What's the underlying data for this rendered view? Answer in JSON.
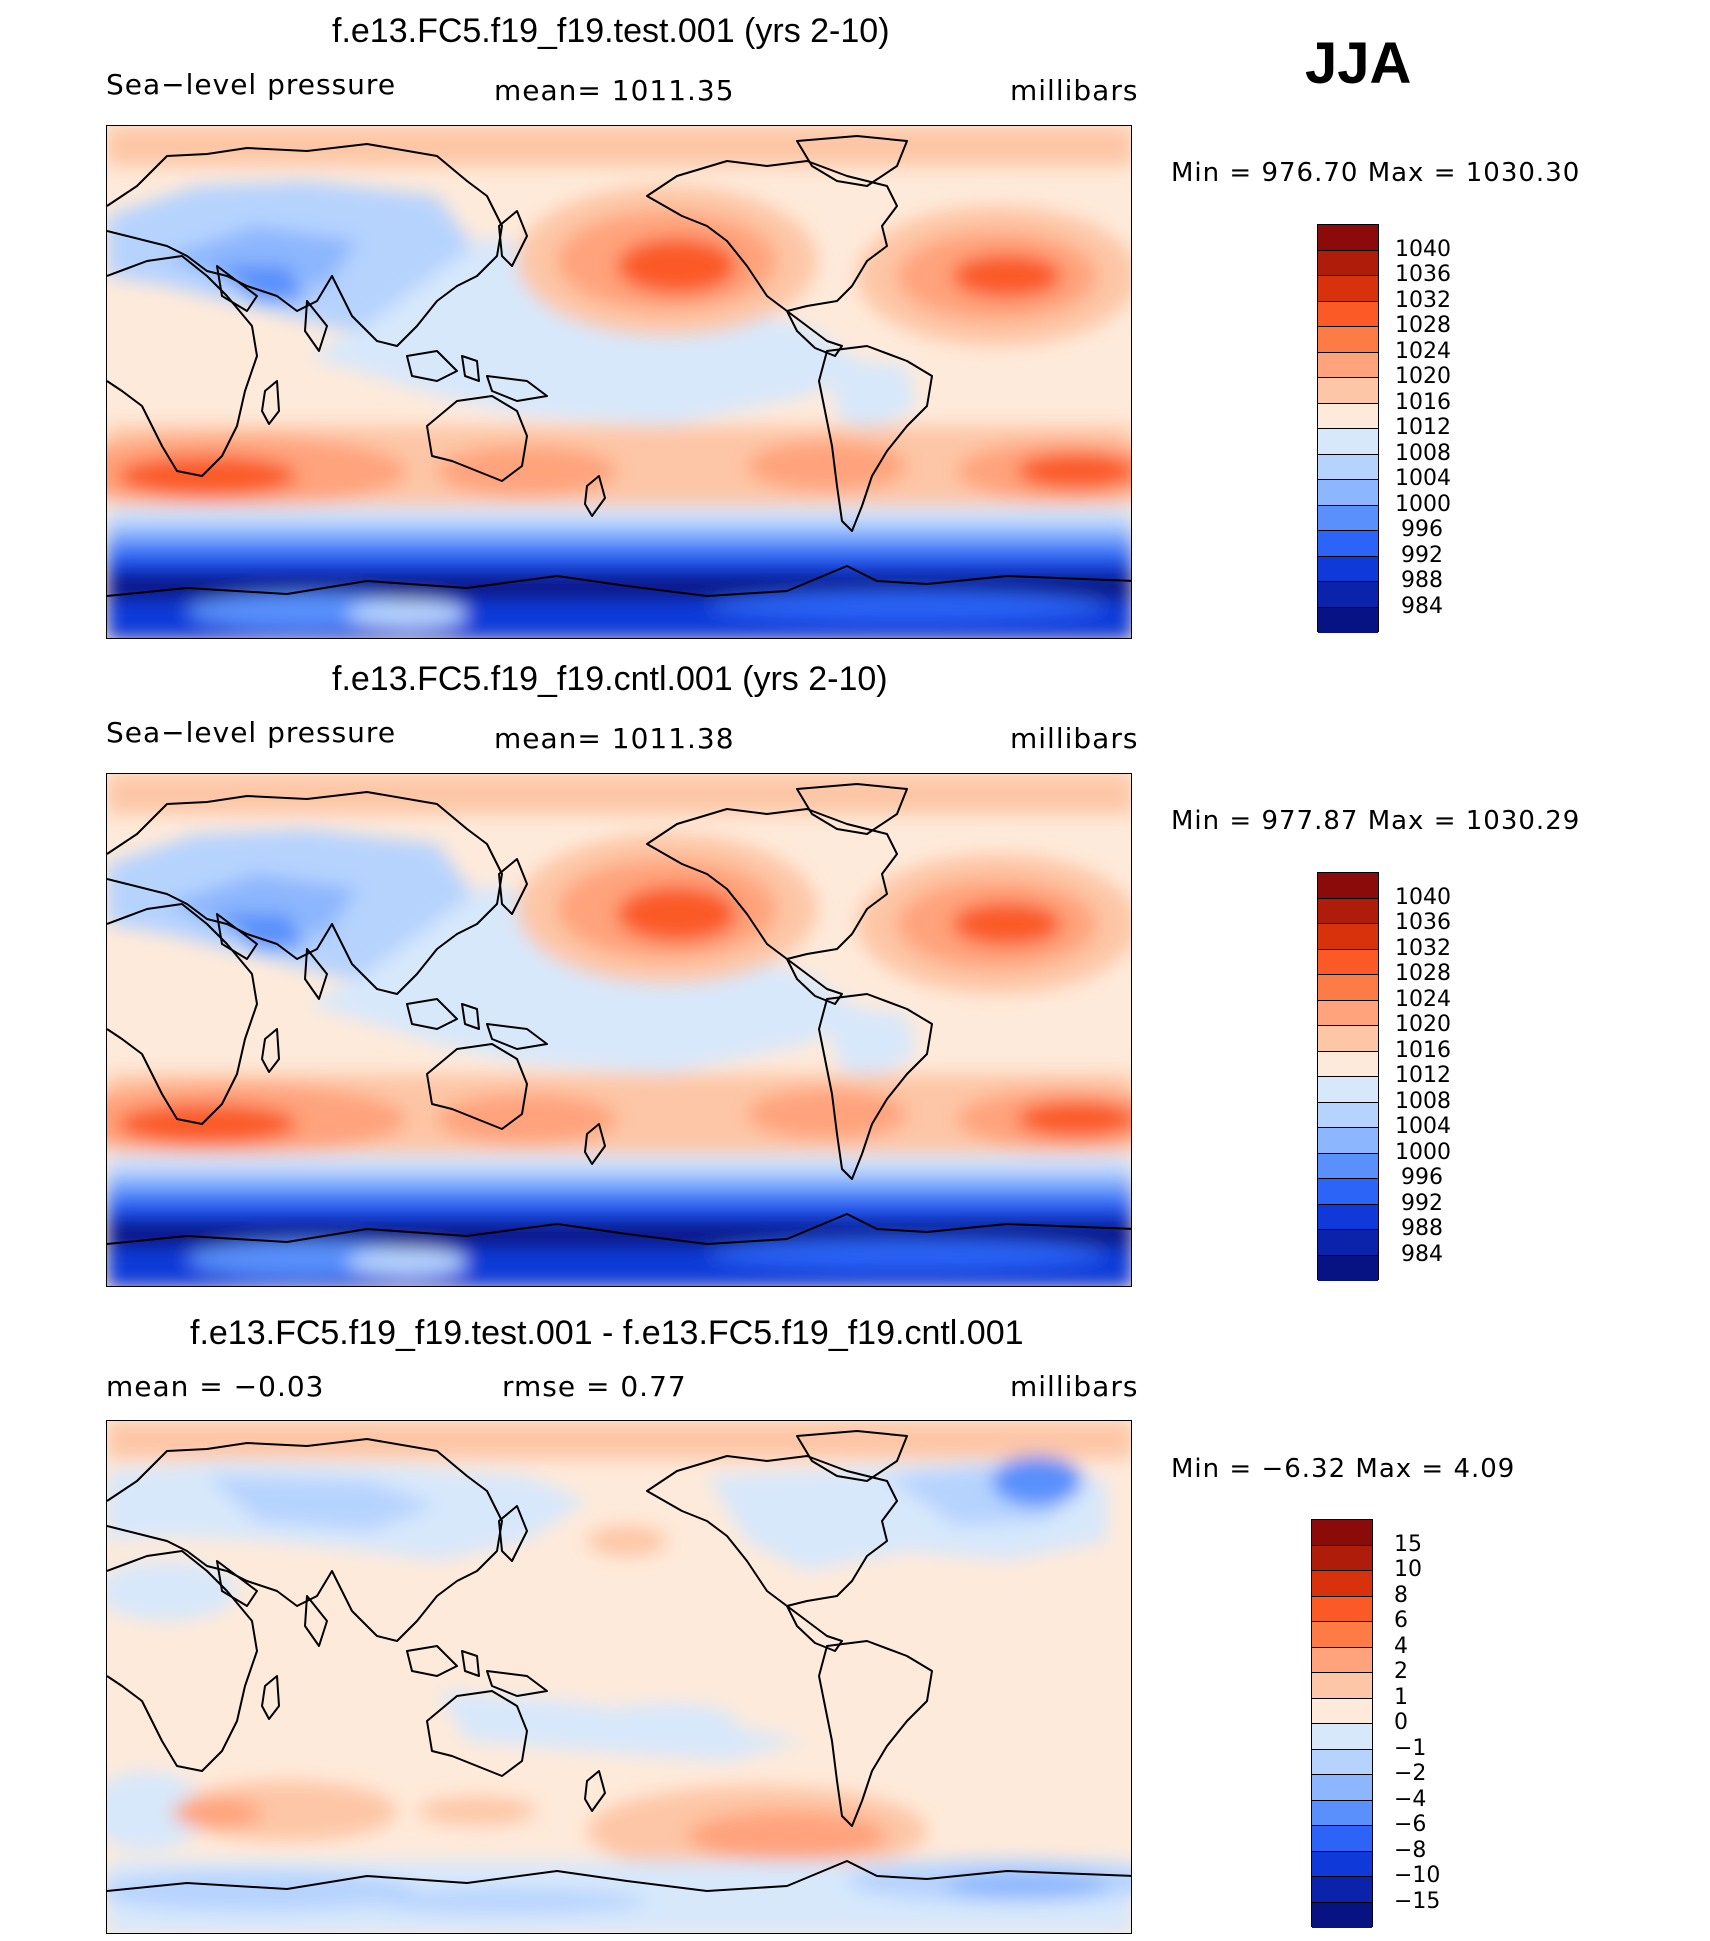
{
  "season": "JJA",
  "panels": [
    {
      "id": "test",
      "title": "f.e13.FC5.f19_f19.test.001 (yrs 2-10)",
      "left_label": "Sea−level pressure",
      "center_label": "mean=  1011.35",
      "right_label": "millibars",
      "minmax": "Min  =  976.70  Max  =  1030.30",
      "map_description": "Sea-level pressure field, world map centered on Pacific",
      "colorbar": {
        "labels": [
          "1040",
          "1036",
          "1032",
          "1028",
          "1024",
          "1020",
          "1016",
          "1012",
          "1008",
          "1004",
          "1000",
          "996",
          "992",
          "988",
          "984"
        ],
        "colors": [
          "#8b0a0a",
          "#b01c0a",
          "#d8320c",
          "#fb5a26",
          "#fd7b45",
          "#fea37c",
          "#fdc6a6",
          "#feeada",
          "#d7e8fb",
          "#b6d3fe",
          "#8cb6fd",
          "#5990fc",
          "#2b64f6",
          "#0f3ad9",
          "#0b22aa",
          "#071283"
        ]
      }
    },
    {
      "id": "cntl",
      "title": "f.e13.FC5.f19_f19.cntl.001 (yrs 2-10)",
      "left_label": "Sea−level pressure",
      "center_label": "mean=  1011.38",
      "right_label": "millibars",
      "minmax": "Min  =  977.87  Max  =  1030.29",
      "map_description": "Sea-level pressure field, world map centered on Pacific",
      "colorbar": {
        "labels": [
          "1040",
          "1036",
          "1032",
          "1028",
          "1024",
          "1020",
          "1016",
          "1012",
          "1008",
          "1004",
          "1000",
          "996",
          "992",
          "988",
          "984"
        ],
        "colors": [
          "#8b0a0a",
          "#b01c0a",
          "#d8320c",
          "#fb5a26",
          "#fd7b45",
          "#fea37c",
          "#fdc6a6",
          "#feeada",
          "#d7e8fb",
          "#b6d3fe",
          "#8cb6fd",
          "#5990fc",
          "#2b64f6",
          "#0f3ad9",
          "#0b22aa",
          "#071283"
        ]
      }
    },
    {
      "id": "diff",
      "title": "f.e13.FC5.f19_f19.test.001 - f.e13.FC5.f19_f19.cntl.001",
      "left_label": "mean  =    −0.03",
      "center_label": "rmse  =     0.77",
      "right_label": "millibars",
      "minmax": "Min  =    −6.32  Max  =      4.09",
      "map_description": "Difference in sea-level pressure, test minus control",
      "colorbar": {
        "labels": [
          "15",
          "10",
          "8",
          "6",
          "4",
          "2",
          "1",
          "0",
          "−1",
          "−2",
          "−4",
          "−6",
          "−8",
          "−10",
          "−15"
        ],
        "colors": [
          "#8b0a0a",
          "#b01c0a",
          "#d8320c",
          "#fb5a26",
          "#fd7b45",
          "#fea37c",
          "#fdc6a6",
          "#feeada",
          "#d7e8fb",
          "#b6d3fe",
          "#8cb6fd",
          "#5990fc",
          "#2b64f6",
          "#0f3ad9",
          "#0b22aa",
          "#071283"
        ]
      }
    }
  ],
  "palette": {
    "red_deep": "#d8320c",
    "red_mid": "#fb5a26",
    "salmon": "#fea37c",
    "peach": "#fdc6a6",
    "cream": "#feeada",
    "pale_blue": "#d7e8fb",
    "light_blue": "#b6d3fe",
    "mid_blue": "#5990fc",
    "dark_blue": "#0f3ad9",
    "navy": "#071283",
    "coast": "#000000"
  }
}
